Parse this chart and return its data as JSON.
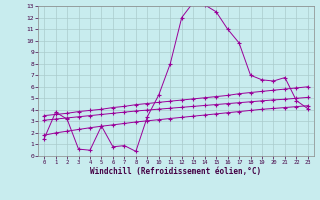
{
  "xlabel": "Windchill (Refroidissement éolien,°C)",
  "xlim": [
    -0.5,
    23.5
  ],
  "ylim": [
    0,
    13
  ],
  "xticks": [
    0,
    1,
    2,
    3,
    4,
    5,
    6,
    7,
    8,
    9,
    10,
    11,
    12,
    13,
    14,
    15,
    16,
    17,
    18,
    19,
    20,
    21,
    22,
    23
  ],
  "yticks": [
    0,
    1,
    2,
    3,
    4,
    5,
    6,
    7,
    8,
    9,
    10,
    11,
    12,
    13
  ],
  "bg_color": "#c8ecee",
  "grid_color": "#aacccc",
  "line_color": "#990099",
  "line1_x": [
    0,
    1,
    2,
    3,
    4,
    5,
    6,
    7,
    8,
    9,
    10,
    11,
    12,
    13,
    14,
    15,
    16,
    17,
    18,
    19,
    20,
    21,
    22,
    23
  ],
  "line1_y": [
    1.5,
    3.8,
    3.2,
    0.6,
    0.5,
    2.6,
    0.8,
    0.9,
    0.4,
    3.4,
    5.3,
    8.0,
    12.0,
    13.3,
    13.1,
    12.5,
    11.0,
    9.8,
    7.0,
    6.6,
    6.5,
    6.8,
    4.8,
    4.1
  ],
  "line2_x": [
    0,
    1,
    2,
    3,
    4,
    5,
    6,
    7,
    8,
    9,
    10,
    11,
    12,
    13,
    14,
    15,
    16,
    17,
    18,
    19,
    20,
    21,
    22,
    23
  ],
  "line2_y": [
    3.5,
    3.6,
    3.7,
    3.85,
    3.95,
    4.05,
    4.2,
    4.3,
    4.45,
    4.55,
    4.65,
    4.75,
    4.85,
    4.95,
    5.05,
    5.15,
    5.25,
    5.4,
    5.5,
    5.6,
    5.7,
    5.8,
    5.9,
    6.0
  ],
  "line3_x": [
    0,
    1,
    2,
    3,
    4,
    5,
    6,
    7,
    8,
    9,
    10,
    11,
    12,
    13,
    14,
    15,
    16,
    17,
    18,
    19,
    20,
    21,
    22,
    23
  ],
  "line3_y": [
    3.1,
    3.2,
    3.3,
    3.4,
    3.5,
    3.6,
    3.7,
    3.8,
    3.9,
    3.98,
    4.06,
    4.14,
    4.22,
    4.3,
    4.38,
    4.46,
    4.54,
    4.62,
    4.7,
    4.78,
    4.86,
    4.92,
    5.0,
    5.08
  ],
  "line4_x": [
    0,
    1,
    2,
    3,
    4,
    5,
    6,
    7,
    8,
    9,
    10,
    11,
    12,
    13,
    14,
    15,
    16,
    17,
    18,
    19,
    20,
    21,
    22,
    23
  ],
  "line4_y": [
    1.8,
    2.0,
    2.15,
    2.3,
    2.45,
    2.58,
    2.7,
    2.82,
    2.95,
    3.05,
    3.15,
    3.25,
    3.35,
    3.45,
    3.55,
    3.65,
    3.75,
    3.85,
    3.95,
    4.05,
    4.12,
    4.2,
    4.28,
    4.36
  ]
}
